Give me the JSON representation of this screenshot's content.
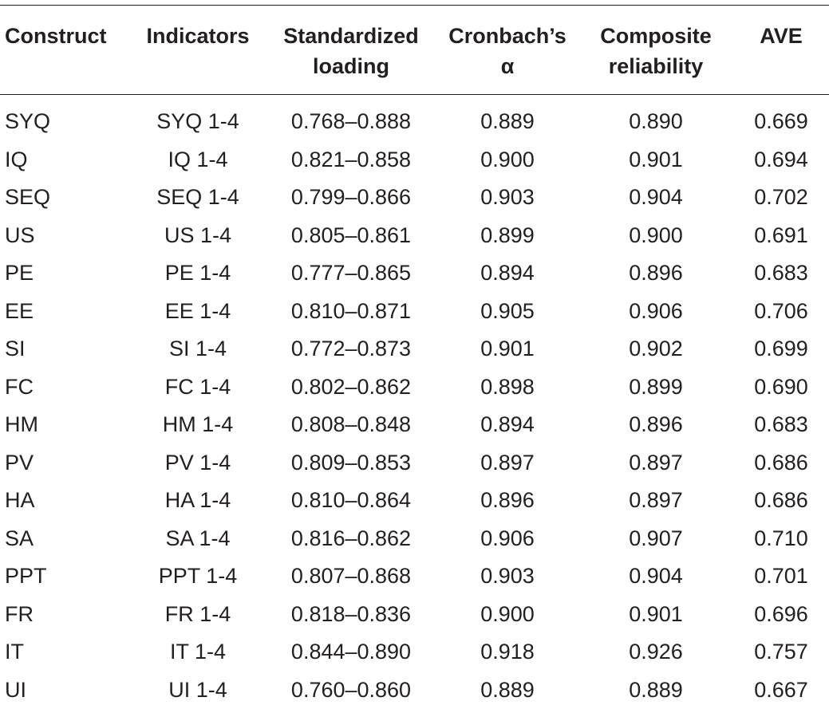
{
  "table": {
    "headers": [
      "Construct",
      "Indicators",
      "Standardized\nloading",
      "Cronbach’s\nα",
      "Composite\nreliability",
      "AVE"
    ],
    "rows": [
      [
        "SYQ",
        "SYQ 1-4",
        "0.768–0.888",
        "0.889",
        "0.890",
        "0.669"
      ],
      [
        "IQ",
        "IQ 1-4",
        "0.821–0.858",
        "0.900",
        "0.901",
        "0.694"
      ],
      [
        "SEQ",
        "SEQ 1-4",
        "0.799–0.866",
        "0.903",
        "0.904",
        "0.702"
      ],
      [
        "US",
        "US 1-4",
        "0.805–0.861",
        "0.899",
        "0.900",
        "0.691"
      ],
      [
        "PE",
        "PE 1-4",
        "0.777–0.865",
        "0.894",
        "0.896",
        "0.683"
      ],
      [
        "EE",
        "EE 1-4",
        "0.810–0.871",
        "0.905",
        "0.906",
        "0.706"
      ],
      [
        "SI",
        "SI 1-4",
        "0.772–0.873",
        "0.901",
        "0.902",
        "0.699"
      ],
      [
        "FC",
        "FC 1-4",
        "0.802–0.862",
        "0.898",
        "0.899",
        "0.690"
      ],
      [
        "HM",
        "HM 1-4",
        "0.808–0.848",
        "0.894",
        "0.896",
        "0.683"
      ],
      [
        "PV",
        "PV 1-4",
        "0.809–0.853",
        "0.897",
        "0.897",
        "0.686"
      ],
      [
        "HA",
        "HA 1-4",
        "0.810–0.864",
        "0.896",
        "0.897",
        "0.686"
      ],
      [
        "SA",
        "SA 1-4",
        "0.816–0.862",
        "0.906",
        "0.907",
        "0.710"
      ],
      [
        "PPT",
        "PPT 1-4",
        "0.807–0.868",
        "0.903",
        "0.904",
        "0.701"
      ],
      [
        "FR",
        "FR 1-4",
        "0.818–0.836",
        "0.900",
        "0.901",
        "0.696"
      ],
      [
        "IT",
        "IT 1-4",
        "0.844–0.890",
        "0.918",
        "0.926",
        "0.757"
      ],
      [
        "UI",
        "UI 1-4",
        "0.760–0.860",
        "0.889",
        "0.889",
        "0.667"
      ]
    ]
  }
}
